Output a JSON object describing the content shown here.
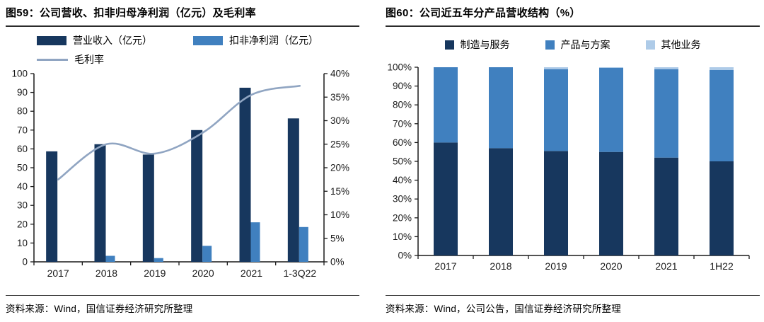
{
  "figures": [
    {
      "title": "图59：公司营收、扣非归母净利润（亿元）及毛利率",
      "legend": [
        {
          "label": "营业收入（亿元）",
          "swatch": "bar",
          "color": "#17375e"
        },
        {
          "label": "扣非净利润（亿元）",
          "swatch": "bar",
          "color": "#4080bf"
        },
        {
          "label": "毛利率",
          "swatch": "line",
          "color": "#90a5c2"
        }
      ],
      "source": "资料来源：Wind，国信证券经济研究所整理"
    },
    {
      "title": "图60：公司近五年分产品营收结构（%）",
      "legend": [
        {
          "label": "制造与服务",
          "swatch": "square",
          "color": "#17375e"
        },
        {
          "label": "产品与方案",
          "swatch": "square",
          "color": "#4080bf"
        },
        {
          "label": "其他业务",
          "swatch": "square",
          "color": "#aecbe8"
        }
      ],
      "source": "资料来源：Wind，公司公告，国信证券经济研究所整理"
    }
  ],
  "chart_data": [
    {
      "type": "bar+line",
      "title": "公司营收、扣非归母净利润（亿元）及毛利率",
      "categories": [
        "2017",
        "2018",
        "2019",
        "2020",
        "2021",
        "1-3Q22"
      ],
      "series": [
        {
          "name": "营业收入（亿元）",
          "type": "bar",
          "axis": "left",
          "color": "#17375e",
          "values": [
            58.7,
            62.5,
            57,
            70,
            92.5,
            76.2
          ]
        },
        {
          "name": "扣非净利润（亿元）",
          "type": "bar",
          "axis": "left",
          "color": "#4080bf",
          "values": [
            0,
            3.2,
            2,
            8.5,
            21,
            18.5
          ]
        },
        {
          "name": "毛利率",
          "type": "line",
          "axis": "right",
          "color": "#90a5c2",
          "values": [
            17.5,
            25,
            23,
            27.5,
            35.5,
            37.4
          ]
        }
      ],
      "left_axis": {
        "min": 0,
        "max": 100,
        "step": 10,
        "unit": ""
      },
      "right_axis": {
        "min": 0,
        "max": 40,
        "step": 5,
        "unit": "%"
      },
      "legend_position": "top",
      "grid": false,
      "axis_color": "#1a1a1a"
    },
    {
      "type": "stacked-bar",
      "title": "公司近五年分产品营收结构（%）",
      "categories": [
        "2017",
        "2018",
        "2019",
        "2020",
        "2021",
        "1H22"
      ],
      "series": [
        {
          "name": "制造与服务",
          "color": "#17375e",
          "values": [
            60,
            57,
            55.5,
            55,
            52,
            50
          ]
        },
        {
          "name": "产品与方案",
          "color": "#4080bf",
          "values": [
            40,
            43,
            43.5,
            44.7,
            47,
            48.5
          ]
        },
        {
          "name": "其他业务",
          "color": "#aecbe8",
          "values": [
            0,
            0,
            1,
            0.3,
            1,
            1.5
          ]
        }
      ],
      "y_axis": {
        "min": 0,
        "max": 100,
        "step": 10,
        "unit": "%"
      },
      "legend_position": "top",
      "grid": false,
      "axis_color": "#1a1a1a"
    }
  ]
}
